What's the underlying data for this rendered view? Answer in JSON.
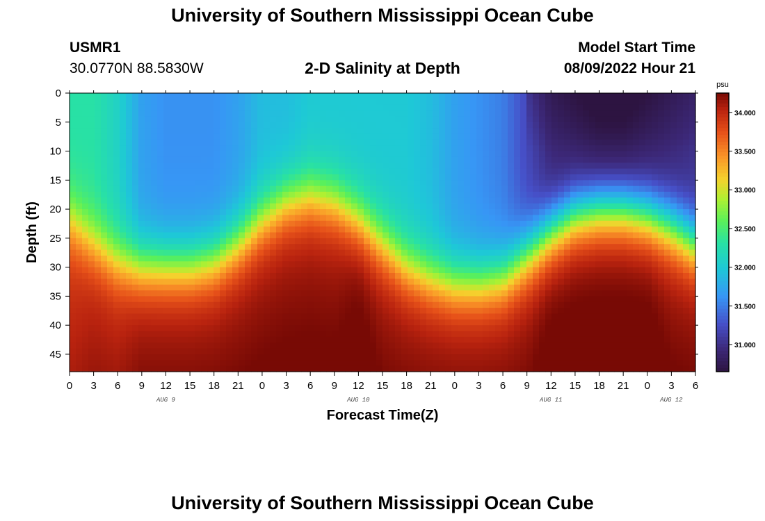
{
  "header": {
    "title": "University of Southern Mississippi Ocean Cube",
    "station": "USMR1",
    "coords": "30.0770N  88.5830W",
    "subtitle": "2-D Salinity at Depth",
    "model_start_label": "Model Start Time",
    "model_start_value": "08/09/2022 Hour 21"
  },
  "footer": {
    "title": "University of Southern Mississippi Ocean Cube"
  },
  "chart_data": {
    "type": "heatmap",
    "title": "2-D Salinity at Depth",
    "xlabel": "Forecast Time(Z)",
    "ylabel": "Depth (ft)",
    "x_hours_range": [
      0,
      78
    ],
    "x_ticks": [
      "0",
      "3",
      "6",
      "9",
      "12",
      "15",
      "18",
      "21",
      "0",
      "3",
      "6",
      "9",
      "12",
      "15",
      "18",
      "21",
      "0",
      "3",
      "6",
      "9",
      "12",
      "15",
      "18",
      "21",
      "0",
      "3",
      "6"
    ],
    "date_labels": [
      {
        "label": "AUG 9",
        "at_hour": 12
      },
      {
        "label": "AUG 10",
        "at_hour": 36
      },
      {
        "label": "AUG 11",
        "at_hour": 60
      },
      {
        "label": "AUG 12",
        "at_hour": 75
      }
    ],
    "y_range": [
      0,
      48
    ],
    "y_ticks": [
      "0",
      "5",
      "10",
      "15",
      "20",
      "25",
      "30",
      "35",
      "40",
      "45"
    ],
    "colorbar": {
      "unit": "psu",
      "range": [
        30.65,
        34.25
      ],
      "ticks": [
        "31.000",
        "31.500",
        "32.000",
        "32.500",
        "33.000",
        "33.500",
        "34.000"
      ]
    },
    "profile_hours": [
      0,
      3,
      6,
      9,
      12,
      15,
      18,
      21,
      24,
      27,
      30,
      33,
      36,
      39,
      42,
      45,
      48,
      51,
      54,
      57,
      60,
      63,
      66,
      69,
      72,
      75,
      78
    ],
    "surface_salinity": [
      32.3,
      32.3,
      32.1,
      31.7,
      31.6,
      31.6,
      31.6,
      31.7,
      31.9,
      31.9,
      32.0,
      32.0,
      32.0,
      32.0,
      32.0,
      31.9,
      31.7,
      31.6,
      31.5,
      31.2,
      30.9,
      30.8,
      30.7,
      30.7,
      30.8,
      30.9,
      31.0
    ],
    "halocline_depth_ft": [
      22,
      26,
      29,
      30,
      30,
      30,
      29,
      26,
      22,
      19,
      18,
      19,
      22,
      26,
      30,
      32,
      33,
      33,
      32,
      28,
      24,
      21,
      20,
      20,
      21,
      23,
      26
    ],
    "bottom_salinity": [
      33.9,
      34.0,
      34.0,
      34.1,
      34.1,
      34.1,
      34.1,
      34.1,
      34.1,
      34.1,
      34.1,
      34.1,
      34.2,
      34.1,
      34.1,
      34.1,
      34.1,
      34.1,
      34.1,
      34.1,
      34.2,
      34.2,
      34.2,
      34.2,
      34.2,
      34.1,
      34.1
    ]
  }
}
